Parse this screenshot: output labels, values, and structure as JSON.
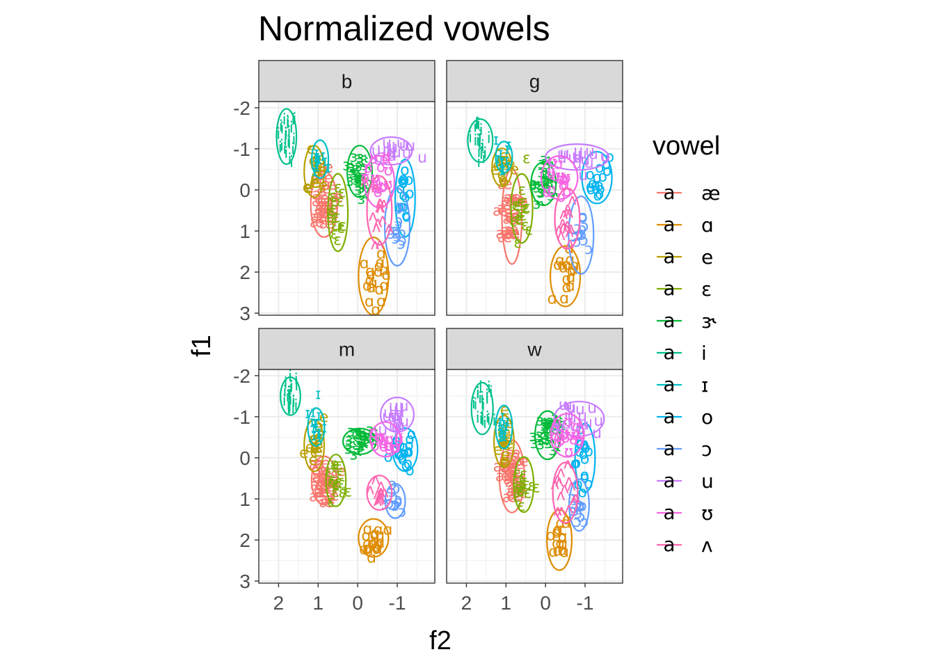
{
  "chart_data": {
    "type": "scatter",
    "title": "Normalized vowels",
    "xlabel": "f2",
    "ylabel": "f1",
    "x_reversed": true,
    "y_reversed": true,
    "xlim": [
      2.5,
      -1.95
    ],
    "ylim": [
      -2.15,
      3.05
    ],
    "x_ticks": [
      2,
      1,
      0,
      -1
    ],
    "x_tick_labels": [
      "2",
      "1",
      "0",
      "-1"
    ],
    "y_ticks": [
      -2,
      -1,
      0,
      1,
      2,
      3
    ],
    "y_tick_labels": [
      "-2",
      "-1",
      "0",
      "1",
      "2",
      "3"
    ],
    "grid": true,
    "legend": {
      "title": "vowel",
      "position": "right",
      "key_glyph": "a",
      "entries": [
        {
          "label": "æ",
          "color": "#F8766D"
        },
        {
          "label": "ɑ",
          "color": "#DE8C00"
        },
        {
          "label": "e",
          "color": "#B79F00"
        },
        {
          "label": "ɛ",
          "color": "#7CAE00"
        },
        {
          "label": "ɝ",
          "color": "#00BA38"
        },
        {
          "label": "i",
          "color": "#00C08B"
        },
        {
          "label": "ɪ",
          "color": "#00BFC4"
        },
        {
          "label": "o",
          "color": "#00B4F0"
        },
        {
          "label": "ɔ",
          "color": "#619CFF"
        },
        {
          "label": "u",
          "color": "#C77CFF"
        },
        {
          "label": "ʊ",
          "color": "#F564E3"
        },
        {
          "label": "ʌ",
          "color": "#FF64B0"
        }
      ]
    },
    "facets": [
      {
        "label": "b",
        "clusters": [
          {
            "vowel": "æ",
            "mx": 0.85,
            "my": 0.35,
            "sx": 0.16,
            "sy": 0.38,
            "n": 22
          },
          {
            "vowel": "ɑ",
            "mx": -0.4,
            "my": 2.1,
            "sx": 0.18,
            "sy": 0.45,
            "n": 18
          },
          {
            "vowel": "e",
            "mx": 1.1,
            "my": -0.45,
            "sx": 0.12,
            "sy": 0.3,
            "n": 16
          },
          {
            "vowel": "ɛ",
            "mx": 0.5,
            "my": 0.55,
            "sx": 0.12,
            "sy": 0.45,
            "n": 16
          },
          {
            "vowel": "ɝ",
            "mx": -0.05,
            "my": -0.45,
            "sx": 0.15,
            "sy": 0.3,
            "n": 20
          },
          {
            "vowel": "i",
            "mx": 1.8,
            "my": -1.3,
            "sx": 0.12,
            "sy": 0.32,
            "n": 24
          },
          {
            "vowel": "ɪ",
            "mx": 0.95,
            "my": -0.75,
            "sx": 0.1,
            "sy": 0.22,
            "n": 12
          },
          {
            "vowel": "o",
            "mx": -1.2,
            "my": 0.2,
            "sx": 0.12,
            "sy": 0.45,
            "n": 16
          },
          {
            "vowel": "ɔ",
            "mx": -1.0,
            "my": 0.9,
            "sx": 0.15,
            "sy": 0.45,
            "n": 14
          },
          {
            "vowel": "u",
            "mx": -0.85,
            "my": -0.95,
            "sx": 0.25,
            "sy": 0.16,
            "n": 18
          },
          {
            "vowel": "ʊ",
            "mx": -0.55,
            "my": -0.2,
            "sx": 0.18,
            "sy": 0.3,
            "n": 16
          },
          {
            "vowel": "ʌ",
            "mx": -0.55,
            "my": 0.5,
            "sx": 0.15,
            "sy": 0.4,
            "n": 14
          }
        ]
      },
      {
        "label": "g",
        "clusters": [
          {
            "vowel": "æ",
            "mx": 0.85,
            "my": 0.65,
            "sx": 0.12,
            "sy": 0.55,
            "n": 22
          },
          {
            "vowel": "ɑ",
            "mx": -0.5,
            "my": 2.1,
            "sx": 0.18,
            "sy": 0.35,
            "n": 16
          },
          {
            "vowel": "e",
            "mx": 1.1,
            "my": -0.55,
            "sx": 0.12,
            "sy": 0.22,
            "n": 14
          },
          {
            "vowel": "ɛ",
            "mx": 0.6,
            "my": 0.45,
            "sx": 0.13,
            "sy": 0.4,
            "n": 16
          },
          {
            "vowel": "ɝ",
            "mx": 0.05,
            "my": -0.15,
            "sx": 0.15,
            "sy": 0.25,
            "n": 18
          },
          {
            "vowel": "i",
            "mx": 1.65,
            "my": -1.2,
            "sx": 0.15,
            "sy": 0.25,
            "n": 20
          },
          {
            "vowel": "ɪ",
            "mx": 1.05,
            "my": -0.8,
            "sx": 0.1,
            "sy": 0.18,
            "n": 12
          },
          {
            "vowel": "o",
            "mx": -1.3,
            "my": -0.3,
            "sx": 0.18,
            "sy": 0.3,
            "n": 16
          },
          {
            "vowel": "ɔ",
            "mx": -0.9,
            "my": 1.1,
            "sx": 0.15,
            "sy": 0.45,
            "n": 14
          },
          {
            "vowel": "u",
            "mx": -0.8,
            "my": -0.8,
            "sx": 0.38,
            "sy": 0.15,
            "n": 18
          },
          {
            "vowel": "ʊ",
            "mx": -0.35,
            "my": -0.3,
            "sx": 0.22,
            "sy": 0.25,
            "n": 16
          },
          {
            "vowel": "ʌ",
            "mx": -0.55,
            "my": 0.7,
            "sx": 0.15,
            "sy": 0.35,
            "n": 14
          }
        ]
      },
      {
        "label": "m",
        "clusters": [
          {
            "vowel": "æ",
            "mx": 0.85,
            "my": 0.55,
            "sx": 0.15,
            "sy": 0.28,
            "n": 22
          },
          {
            "vowel": "ɑ",
            "mx": -0.4,
            "my": 1.95,
            "sx": 0.18,
            "sy": 0.22,
            "n": 20
          },
          {
            "vowel": "e",
            "mx": 1.1,
            "my": -0.3,
            "sx": 0.12,
            "sy": 0.3,
            "n": 18
          },
          {
            "vowel": "ɛ",
            "mx": 0.55,
            "my": 0.55,
            "sx": 0.12,
            "sy": 0.3,
            "n": 16
          },
          {
            "vowel": "ɝ",
            "mx": -0.05,
            "my": -0.4,
            "sx": 0.2,
            "sy": 0.15,
            "n": 22
          },
          {
            "vowel": "i",
            "mx": 1.7,
            "my": -1.5,
            "sx": 0.12,
            "sy": 0.22,
            "n": 22
          },
          {
            "vowel": "ɪ",
            "mx": 1.05,
            "my": -0.75,
            "sx": 0.1,
            "sy": 0.22,
            "n": 14
          },
          {
            "vowel": "o",
            "mx": -1.2,
            "my": -0.2,
            "sx": 0.15,
            "sy": 0.25,
            "n": 20
          },
          {
            "vowel": "ɔ",
            "mx": -0.95,
            "my": 1.05,
            "sx": 0.12,
            "sy": 0.2,
            "n": 14
          },
          {
            "vowel": "u",
            "mx": -1.0,
            "my": -1.05,
            "sx": 0.2,
            "sy": 0.2,
            "n": 18
          },
          {
            "vowel": "ʊ",
            "mx": -0.7,
            "my": -0.45,
            "sx": 0.18,
            "sy": 0.2,
            "n": 16
          },
          {
            "vowel": "ʌ",
            "mx": -0.55,
            "my": 0.85,
            "sx": 0.15,
            "sy": 0.2,
            "n": 14
          }
        ]
      },
      {
        "label": "w",
        "clusters": [
          {
            "vowel": "æ",
            "mx": 0.85,
            "my": 0.45,
            "sx": 0.15,
            "sy": 0.42,
            "n": 24
          },
          {
            "vowel": "ɑ",
            "mx": -0.35,
            "my": 2.0,
            "sx": 0.15,
            "sy": 0.35,
            "n": 16
          },
          {
            "vowel": "e",
            "mx": 1.05,
            "my": -0.4,
            "sx": 0.12,
            "sy": 0.3,
            "n": 18
          },
          {
            "vowel": "ɛ",
            "mx": 0.55,
            "my": 0.65,
            "sx": 0.12,
            "sy": 0.32,
            "n": 16
          },
          {
            "vowel": "ɝ",
            "mx": -0.05,
            "my": -0.55,
            "sx": 0.15,
            "sy": 0.28,
            "n": 22
          },
          {
            "vowel": "i",
            "mx": 1.6,
            "my": -1.2,
            "sx": 0.13,
            "sy": 0.3,
            "n": 22
          },
          {
            "vowel": "ɪ",
            "mx": 1.05,
            "my": -0.75,
            "sx": 0.1,
            "sy": 0.25,
            "n": 14
          },
          {
            "vowel": "o",
            "mx": -1.0,
            "my": 0.0,
            "sx": 0.12,
            "sy": 0.4,
            "n": 18
          },
          {
            "vowel": "ɔ",
            "mx": -0.85,
            "my": 1.15,
            "sx": 0.12,
            "sy": 0.3,
            "n": 14
          },
          {
            "vowel": "u",
            "mx": -0.85,
            "my": -0.95,
            "sx": 0.3,
            "sy": 0.2,
            "n": 18
          },
          {
            "vowel": "ʊ",
            "mx": -0.55,
            "my": -0.55,
            "sx": 0.2,
            "sy": 0.25,
            "n": 16
          },
          {
            "vowel": "ʌ",
            "mx": -0.5,
            "my": 0.85,
            "sx": 0.15,
            "sy": 0.35,
            "n": 14
          }
        ]
      }
    ]
  }
}
